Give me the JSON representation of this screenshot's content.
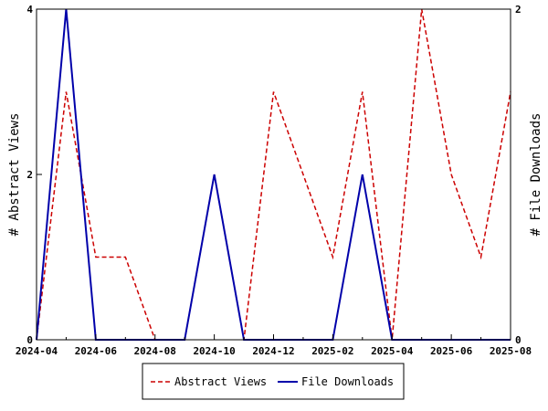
{
  "chart_data": {
    "type": "line",
    "x": [
      "2024-04",
      "2024-05",
      "2024-06",
      "2024-07",
      "2024-08",
      "2024-09",
      "2024-10",
      "2024-11",
      "2024-12",
      "2025-01",
      "2025-02",
      "2025-03",
      "2025-04",
      "2025-05",
      "2025-06",
      "2025-07",
      "2025-08"
    ],
    "x_tick_labels": [
      "2024-04",
      "2024-06",
      "2024-08",
      "2024-10",
      "2024-12",
      "2025-02",
      "2025-04",
      "2025-06",
      "2025-08"
    ],
    "ylabel": "# Abstract Views",
    "y2label": "# File Downloads",
    "ylim": [
      0,
      4
    ],
    "y2lim": [
      0,
      2
    ],
    "y_ticks": [
      0,
      2,
      4
    ],
    "y2_ticks": [
      0,
      2
    ],
    "grid": false,
    "legend_position": "bottom",
    "series": [
      {
        "name": "Abstract Views",
        "axis": "left",
        "color": "#cc0000",
        "style": "dashed",
        "values": [
          0,
          3,
          1,
          1,
          0,
          0,
          2,
          0,
          3,
          2,
          1,
          3,
          0,
          4,
          2,
          1,
          3
        ]
      },
      {
        "name": "File Downloads",
        "axis": "right",
        "color": "#0000aa",
        "style": "solid",
        "values": [
          0,
          2,
          0,
          0,
          0,
          0,
          1,
          0,
          0,
          0,
          0,
          1,
          0,
          0,
          0,
          0,
          0
        ]
      }
    ]
  }
}
